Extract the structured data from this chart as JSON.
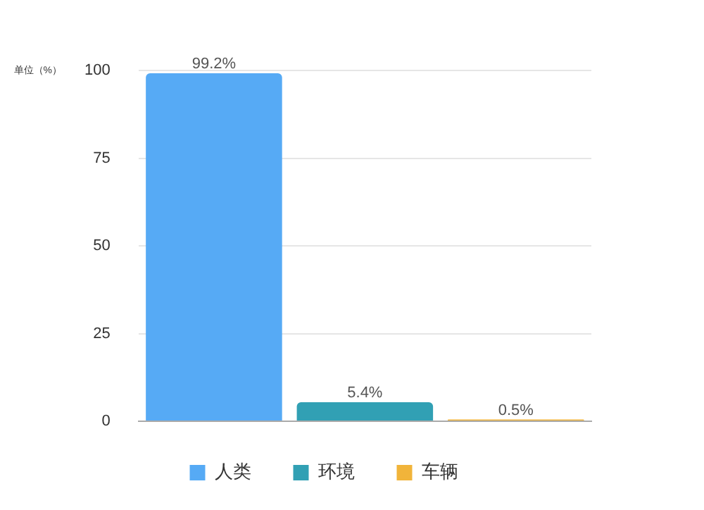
{
  "chart_data": {
    "type": "bar",
    "ylabel": "单位（%）",
    "categories": [
      null,
      null,
      null
    ],
    "series": [
      {
        "name": "人类",
        "color": "#56aaf5",
        "values": [
          99.2,
          null,
          null
        ],
        "value_labels": [
          "99.2%",
          null,
          null
        ]
      },
      {
        "name": "环境",
        "color": "#31a0b4",
        "values": [
          null,
          5.4,
          null
        ],
        "value_labels": [
          null,
          "5.4%",
          null
        ]
      },
      {
        "name": "车辆",
        "color": "#f1b43a",
        "values": [
          null,
          null,
          0.5
        ],
        "value_labels": [
          null,
          null,
          "0.5%"
        ]
      }
    ],
    "ylim": [
      0,
      100
    ],
    "yticks": [
      0,
      25,
      50,
      75,
      100
    ],
    "grid": "y",
    "legend": "bottom"
  }
}
